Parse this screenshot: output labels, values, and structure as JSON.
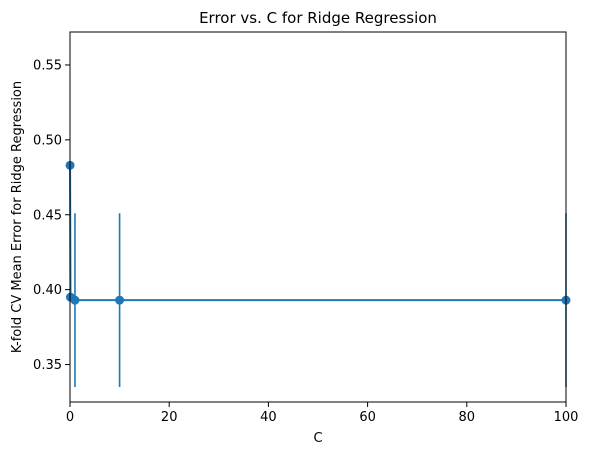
{
  "chart_data": {
    "type": "line",
    "title": "Error vs. C for Ridge Regression",
    "xlabel": "C",
    "ylabel": "K-fold CV Mean Error for Ridge Regression",
    "xlim": [
      0,
      100
    ],
    "ylim": [
      0.325,
      0.572
    ],
    "x_ticks": [
      0,
      20,
      40,
      60,
      80,
      100
    ],
    "x_tick_labels": [
      "0",
      "20",
      "40",
      "60",
      "80",
      "100"
    ],
    "y_ticks": [
      0.35,
      0.4,
      0.45,
      0.5,
      0.55
    ],
    "y_tick_labels": [
      "0.35",
      "0.40",
      "0.45",
      "0.50",
      "0.55"
    ],
    "grid": false,
    "legend": "none",
    "series": [
      {
        "x": [
          0.01,
          0.1,
          1,
          10,
          100
        ],
        "values": [
          0.483,
          0.395,
          0.393,
          0.393,
          0.393
        ],
        "yerr": [
          0.0,
          0.0,
          0.058,
          0.058,
          0.058
        ],
        "color": "#1f77b4",
        "marker": "circle"
      }
    ]
  }
}
